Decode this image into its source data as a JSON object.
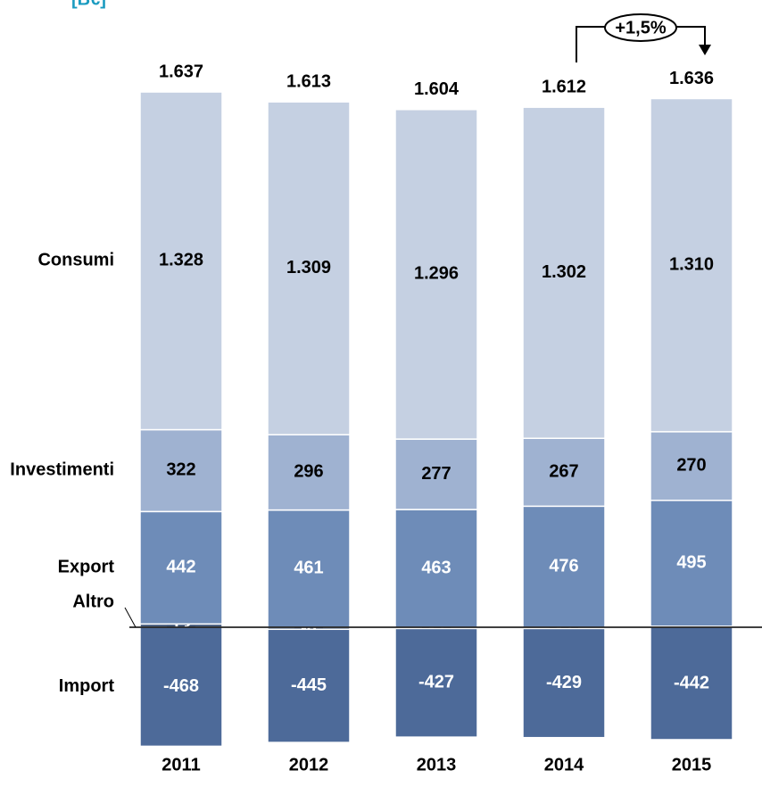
{
  "chart_data": {
    "type": "stacked-bar",
    "unit": "[B€]",
    "categories": [
      "2011",
      "2012",
      "2013",
      "2014",
      "2015"
    ],
    "series": [
      {
        "name": "Altro",
        "color": "#4a5f80",
        "label_color": "#ffffff",
        "values": [
          13,
          -8,
          -5,
          -5,
          4
        ]
      },
      {
        "name": "Export",
        "color": "#6e8cb8",
        "label_color": "#ffffff",
        "values": [
          442,
          461,
          463,
          476,
          495
        ]
      },
      {
        "name": "Investimenti",
        "color": "#9fb2d1",
        "label_color": "#000000",
        "values": [
          322,
          296,
          277,
          267,
          270
        ]
      },
      {
        "name": "Consumi",
        "color": "#c5d0e2",
        "label_color": "#000000",
        "values": [
          1328,
          1309,
          1296,
          1302,
          1310
        ],
        "value_labels": [
          "1.328",
          "1.309",
          "1.296",
          "1.302",
          "1.310"
        ]
      },
      {
        "name": "Import",
        "color": "#4d6a99",
        "label_color": "#ffffff",
        "values": [
          -468,
          -445,
          -427,
          -429,
          -442
        ]
      }
    ],
    "totals": {
      "values": [
        1637,
        1613,
        1604,
        1612,
        1636
      ],
      "value_labels": [
        "1.637",
        "1.613",
        "1.604",
        "1.612",
        "1.636"
      ]
    },
    "annotation": "+1,5%",
    "ylim": [
      -600,
      2300
    ]
  }
}
